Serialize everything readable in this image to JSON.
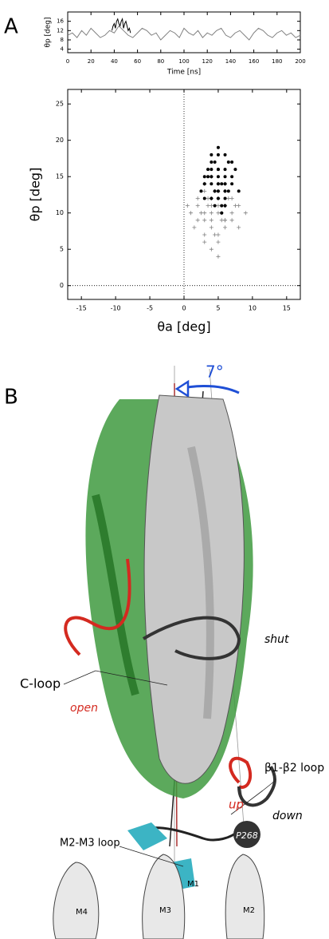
{
  "panel_labels": [
    "A",
    "B"
  ],
  "chart_data": [
    {
      "type": "line",
      "xlabel": "Time [ns]",
      "ylabel": "θp [deg]",
      "xlim": [
        0,
        200
      ],
      "xticks": [
        0,
        20,
        40,
        60,
        80,
        100,
        120,
        140,
        160,
        180,
        200
      ],
      "ylim": [
        2.5,
        20
      ],
      "yticks": [
        4,
        8,
        12,
        16
      ],
      "series": [
        {
          "color": "#808080",
          "x": [
            0,
            4,
            8,
            12,
            16,
            20,
            24,
            28,
            32,
            36,
            40,
            44,
            48,
            52,
            56,
            60,
            64,
            68,
            72,
            76,
            80,
            84,
            88,
            92,
            96,
            100,
            104,
            108,
            112,
            116,
            120,
            124,
            128,
            132,
            136,
            140,
            144,
            148,
            152,
            156,
            160,
            164,
            168,
            172,
            176,
            180,
            184,
            188,
            192,
            196,
            200
          ],
          "values": [
            10,
            11,
            9,
            12,
            10,
            13,
            11,
            9,
            10,
            12,
            11,
            14,
            12,
            10,
            9,
            11,
            13,
            12,
            10,
            11,
            8,
            10,
            12,
            11,
            9,
            13,
            11,
            10,
            12,
            9,
            11,
            10,
            12,
            13,
            10,
            9,
            11,
            12,
            10,
            8,
            11,
            13,
            12,
            10,
            9,
            11,
            12,
            10,
            11,
            9,
            10
          ]
        },
        {
          "color": "#000000",
          "x": [
            38,
            39,
            40,
            41,
            42,
            43,
            44,
            45,
            46,
            47,
            48,
            49,
            50,
            51,
            52,
            53,
            54
          ],
          "values": [
            12,
            14,
            15,
            13,
            16,
            17,
            15,
            14,
            16,
            17,
            13,
            15,
            16,
            14,
            12,
            13,
            11
          ]
        }
      ]
    },
    {
      "type": "scatter",
      "xlabel": "θa [deg]",
      "ylabel": "θp [deg]",
      "xlim": [
        -17,
        17
      ],
      "xticks": [
        -15,
        -10,
        -5,
        0,
        5,
        10,
        15
      ],
      "ylim": [
        -1.9,
        27
      ],
      "yticks": [
        0,
        5,
        10,
        15,
        20,
        25
      ],
      "zero_lines": true,
      "series": [
        {
          "color": "#808080",
          "marker": "plus",
          "x": [
            1,
            2,
            3,
            4,
            5,
            6,
            7,
            8,
            3,
            4,
            5,
            6,
            2,
            3,
            4,
            5,
            6,
            7,
            4,
            5,
            1.5,
            2.5,
            3.5,
            4.5,
            5.5,
            6.5,
            7.5,
            3,
            4,
            5,
            6,
            5,
            4,
            3,
            6,
            7,
            2,
            8,
            4.5,
            5.5,
            3.5,
            0.5,
            9,
            4,
            5,
            6,
            3,
            4,
            5,
            6
          ],
          "y": [
            10,
            11,
            9,
            12,
            10,
            11,
            9,
            8,
            7,
            8,
            6,
            9,
            12,
            13,
            11,
            12,
            13,
            10,
            5,
            4,
            8,
            10,
            11,
            13,
            9,
            12,
            11,
            14,
            10,
            14,
            8,
            7,
            9,
            6,
            11,
            12,
            9,
            11,
            7,
            10,
            12,
            11,
            10,
            15,
            13,
            14,
            10,
            12,
            11,
            9
          ]
        },
        {
          "color": "#000000",
          "marker": "dot",
          "x": [
            3,
            4,
            5,
            6,
            7,
            4.5,
            5.5,
            6.5,
            3.5,
            2.5,
            4,
            5,
            6,
            7,
            8,
            3,
            4,
            5,
            6,
            5,
            4.5,
            5.5,
            6.5,
            7.5,
            3.5,
            4,
            5,
            6,
            4,
            5,
            6,
            5,
            4,
            6,
            7,
            3,
            5,
            6,
            5.5,
            4.5
          ],
          "y": [
            14,
            15,
            16,
            15,
            14,
            13,
            14,
            17,
            16,
            13,
            17,
            18,
            16,
            15,
            13,
            12,
            12,
            13,
            12,
            15,
            11,
            11,
            13,
            16,
            15,
            14,
            14,
            14,
            16,
            16,
            18,
            19,
            18,
            13,
            17,
            15,
            12,
            11,
            10,
            17
          ]
        }
      ]
    }
  ],
  "illustration": {
    "labels": [
      {
        "text": "7°",
        "color": "#1f4fd6"
      },
      {
        "text": "C-loop",
        "color": "#000000"
      },
      {
        "text": "shut",
        "color": "#000000"
      },
      {
        "text": "open",
        "color": "#d42a20"
      },
      {
        "text": "β1-β2 loop",
        "color": "#000000"
      },
      {
        "text": "up",
        "color": "#d42a20"
      },
      {
        "text": "down",
        "color": "#000000"
      },
      {
        "text": "M2-M3 loop",
        "color": "#000000"
      },
      {
        "text": "P268",
        "color": "#ffffff"
      },
      {
        "text": "M4",
        "color": "#000000"
      },
      {
        "text": "M3",
        "color": "#000000"
      },
      {
        "text": "M1",
        "color": "#000000"
      },
      {
        "text": "M2",
        "color": "#000000"
      }
    ]
  }
}
